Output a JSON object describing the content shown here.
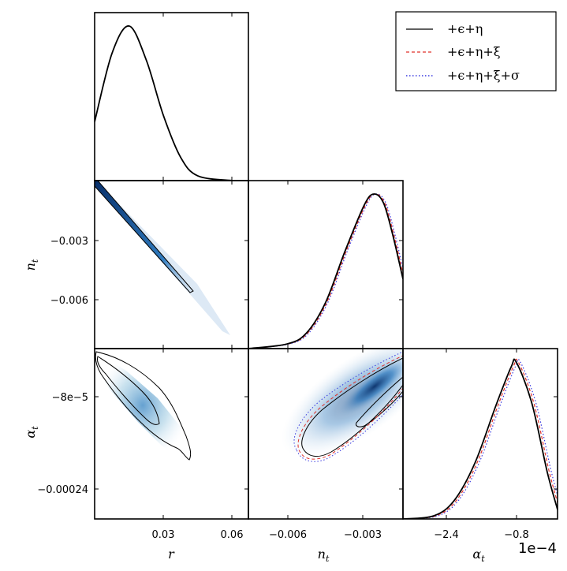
{
  "chart_data": {
    "type": "triangle-corner",
    "legend": [
      {
        "label": "+ϵ+η",
        "color": "#000000",
        "style": "solid"
      },
      {
        "label": "+ϵ+η+ξ",
        "color": "#e0302a",
        "style": "dashed"
      },
      {
        "label": "+ϵ+η+ξ+σ",
        "color": "#3a3ae0",
        "style": "dotted"
      }
    ],
    "legend_placement": "top-right",
    "parameters": [
      {
        "key": "r",
        "label": "r",
        "sub": "",
        "ticks": [
          "0.03",
          "0.06"
        ]
      },
      {
        "key": "n",
        "label": "n",
        "sub": "t",
        "ticks": [
          "−0.006",
          "−0.003"
        ],
        "yticks": [
          "−0.003",
          "−0.006"
        ]
      },
      {
        "key": "a",
        "label": "α",
        "sub": "t",
        "ticks": [
          "−2.4",
          "−0.8"
        ],
        "yticks": [
          "−8e−5",
          "−0.00024"
        ]
      }
    ],
    "x_offset_text": "1e−4",
    "panels": {
      "r_r": {
        "type": "line",
        "x": [
          0.0,
          0.0075,
          0.015,
          0.0225,
          0.03,
          0.0375,
          0.045,
          0.06
        ],
        "series": [
          {
            "name": "+ϵ+η",
            "values": [
              0.38,
              0.82,
              1.0,
              0.78,
              0.42,
              0.15,
              0.03,
              0.0
            ]
          }
        ]
      },
      "n_n": {
        "type": "line",
        "x": [
          -0.009,
          -0.007,
          -0.006,
          -0.005,
          -0.004,
          -0.003,
          -0.0025,
          -0.002,
          -0.0015,
          -0.001
        ],
        "series": [
          {
            "name": "+ϵ+η",
            "values": [
              0.0,
              0.03,
              0.1,
              0.3,
              0.63,
              0.93,
              1.0,
              0.94,
              0.72,
              0.45
            ]
          }
        ]
      },
      "a_a": {
        "type": "line",
        "x": [
          -3.0,
          -2.4,
          -2.0,
          -1.6,
          -1.2,
          -0.9,
          -0.8,
          -0.5,
          -0.2,
          0.0
        ],
        "series": [
          {
            "name": "+ϵ+η",
            "values": [
              0.0,
              0.02,
              0.12,
              0.36,
              0.72,
              0.97,
              1.0,
              0.74,
              0.3,
              0.06
            ]
          }
        ]
      },
      "r_n": {
        "type": "contour",
        "x_range": [
          0,
          0.045
        ],
        "y_range": [
          -0.0015,
          -0.0057
        ]
      },
      "r_a": {
        "type": "contour"
      },
      "n_a": {
        "type": "contour"
      }
    }
  }
}
